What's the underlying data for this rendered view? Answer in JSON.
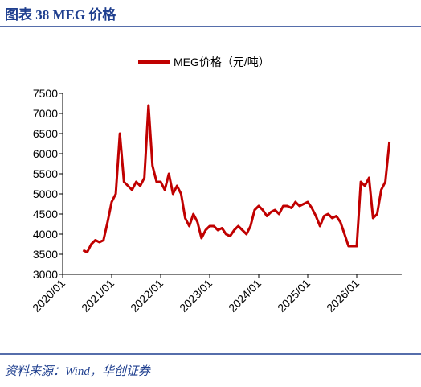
{
  "header": {
    "title": "图表 38 MEG 价格"
  },
  "source": "资料来源：Wind，华创证券",
  "chart_data": {
    "type": "line",
    "x": [
      "2020/06",
      "2020/07",
      "2020/08",
      "2020/09",
      "2020/10",
      "2020/11",
      "2020/12",
      "2021/01",
      "2021/02",
      "2021/03",
      "2021/04",
      "2021/05",
      "2021/06",
      "2021/07",
      "2021/08",
      "2021/09",
      "2021/10",
      "2021/11",
      "2021/12",
      "2022/01",
      "2022/02",
      "2022/03",
      "2022/04",
      "2022/05",
      "2022/06",
      "2022/07",
      "2022/08",
      "2022/09",
      "2022/10",
      "2022/11",
      "2022/12",
      "2023/01",
      "2023/02",
      "2023/03",
      "2023/04",
      "2023/05",
      "2023/06",
      "2023/07",
      "2023/08",
      "2023/09",
      "2023/10",
      "2023/11",
      "2023/12",
      "2024/01",
      "2024/02",
      "2024/03",
      "2024/04",
      "2024/05",
      "2024/06",
      "2024/07",
      "2024/08",
      "2024/09",
      "2024/10",
      "2024/11",
      "2024/12",
      "2025/01",
      "2025/02",
      "2025/03",
      "2025/04",
      "2025/05",
      "2025/06",
      "2025/07",
      "2025/08",
      "2025/09",
      "2025/10",
      "2025/11",
      "2025/12",
      "2026/01",
      "2026/02",
      "2026/03",
      "2026/04",
      "2026/05",
      "2026/06",
      "2026/07",
      "2026/08",
      "2026/09"
    ],
    "series": [
      {
        "name": "MEG价格（元/吨）",
        "color": "#c00000",
        "values": [
          3600,
          3550,
          3750,
          3850,
          3800,
          3850,
          4300,
          4800,
          5000,
          6500,
          5300,
          5200,
          5100,
          5300,
          5200,
          5400,
          7200,
          5700,
          5300,
          5300,
          5100,
          5500,
          5000,
          5200,
          5000,
          4400,
          4200,
          4500,
          4300,
          3900,
          4100,
          4200,
          4200,
          4100,
          4150,
          4000,
          3950,
          4100,
          4200,
          4100,
          4000,
          4200,
          4600,
          4700,
          4600,
          4450,
          4550,
          4600,
          4500,
          4700,
          4700,
          4650,
          4800,
          4700,
          4750,
          4800,
          4650,
          4450,
          4200,
          4450,
          4500,
          4400,
          4450,
          4300,
          4000,
          3700,
          3700,
          3700,
          5300,
          5200,
          5400,
          4400,
          4500,
          5100,
          5300,
          6300
        ]
      }
    ],
    "ylim": [
      3000,
      7500
    ],
    "yticks": [
      3000,
      3500,
      4000,
      4500,
      5000,
      5500,
      6000,
      6500,
      7000,
      7500
    ],
    "xlim": [
      "2020/01",
      "2026/12"
    ],
    "xticks": [
      "2020/01",
      "2021/01",
      "2022/01",
      "2023/01",
      "2024/01",
      "2025/01",
      "2026/01"
    ],
    "grid": false,
    "legend": "top"
  }
}
